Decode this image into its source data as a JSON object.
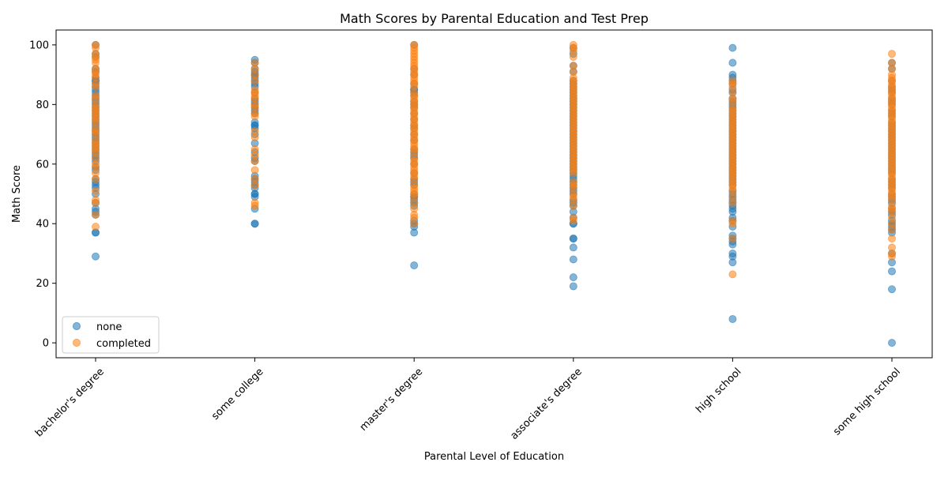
{
  "chart_data": {
    "type": "scatter",
    "title": "Math Scores by Parental Education and Test Prep",
    "xlabel": "Parental Level of Education",
    "ylabel": "Math Score",
    "categories": [
      "bachelor's degree",
      "some college",
      "master's degree",
      "associate's degree",
      "high school",
      "some high school"
    ],
    "yticks": [
      0,
      20,
      40,
      60,
      80,
      100
    ],
    "ylim": [
      -5,
      105
    ],
    "grid": false,
    "legend_position": "lower-left",
    "series": [
      {
        "name": "none",
        "color": "#1f77b4",
        "points": {
          "bachelor's degree": [
            29,
            37,
            37,
            43,
            44,
            45,
            47,
            50,
            52,
            53,
            54,
            55,
            58,
            59,
            61,
            62,
            63,
            64,
            65,
            66,
            67,
            68,
            69,
            70,
            71,
            72,
            73,
            74,
            75,
            76,
            77,
            78,
            79,
            80,
            81,
            82,
            83,
            84,
            85,
            86,
            87,
            88,
            88,
            89,
            91,
            92,
            96,
            97,
            100
          ],
          "some college": [
            40,
            40,
            45,
            49,
            50,
            50,
            52,
            53,
            54,
            55,
            56,
            61,
            62,
            64,
            67,
            70,
            72,
            73,
            73,
            74,
            77,
            78,
            79,
            80,
            81,
            82,
            84,
            86,
            87,
            88,
            89,
            90,
            90,
            91,
            92,
            94,
            95
          ],
          "master's degree": [
            26,
            37,
            39,
            40,
            41,
            46,
            47,
            48,
            49,
            49,
            50,
            53,
            54,
            55,
            57,
            60,
            62,
            63,
            64,
            65,
            68,
            70,
            72,
            73,
            75,
            77,
            79,
            80,
            81,
            83,
            84,
            85,
            85,
            87,
            90,
            92,
            100
          ],
          "associate's degree": [
            19,
            22,
            28,
            32,
            35,
            35,
            40,
            40,
            42,
            44,
            46,
            47,
            48,
            50,
            51,
            52,
            53,
            54,
            55,
            56,
            57,
            58,
            59,
            60,
            61,
            62,
            63,
            64,
            65,
            66,
            67,
            68,
            69,
            70,
            71,
            72,
            73,
            74,
            75,
            76,
            77,
            78,
            79,
            80,
            81,
            82,
            83,
            84,
            85,
            86,
            87,
            88,
            91,
            93,
            97,
            99
          ],
          "high school": [
            8,
            27,
            29,
            30,
            33,
            34,
            35,
            36,
            39,
            41,
            42,
            44,
            45,
            46,
            47,
            48,
            49,
            50,
            51,
            53,
            54,
            55,
            56,
            57,
            58,
            59,
            60,
            61,
            62,
            63,
            64,
            65,
            66,
            67,
            68,
            69,
            70,
            71,
            72,
            73,
            74,
            75,
            76,
            77,
            78,
            79,
            80,
            81,
            82,
            84,
            85,
            87,
            88,
            89,
            90,
            94,
            99
          ],
          "some high school": [
            0,
            18,
            24,
            27,
            30,
            37,
            38,
            39,
            40,
            41,
            43,
            44,
            45,
            47,
            48,
            49,
            50,
            52,
            53,
            54,
            55,
            57,
            58,
            59,
            60,
            61,
            62,
            63,
            64,
            65,
            66,
            67,
            68,
            69,
            70,
            71,
            72,
            73,
            74,
            76,
            77,
            78,
            80,
            81,
            82,
            84,
            85,
            86,
            88,
            92,
            94
          ]
        }
      },
      {
        "name": "completed",
        "color": "#ff7f0e",
        "points": {
          "bachelor's degree": [
            39,
            43,
            47,
            48,
            51,
            55,
            57,
            59,
            60,
            62,
            64,
            65,
            66,
            67,
            68,
            70,
            71,
            72,
            74,
            75,
            76,
            77,
            78,
            79,
            80,
            82,
            83,
            86,
            87,
            89,
            90,
            91,
            92,
            94,
            95,
            96,
            97,
            99,
            100
          ],
          "some college": [
            46,
            47,
            53,
            55,
            58,
            61,
            63,
            65,
            69,
            71,
            76,
            77,
            79,
            80,
            82,
            83,
            84,
            85,
            88,
            90,
            92,
            94
          ],
          "master's degree": [
            40,
            42,
            43,
            45,
            47,
            49,
            50,
            51,
            52,
            53,
            55,
            56,
            57,
            58,
            59,
            60,
            61,
            62,
            64,
            65,
            66,
            67,
            68,
            69,
            70,
            71,
            72,
            73,
            74,
            75,
            76,
            77,
            78,
            79,
            80,
            81,
            82,
            83,
            84,
            86,
            87,
            88,
            89,
            90,
            91,
            92,
            93,
            94,
            95,
            96,
            97,
            98,
            99,
            100
          ],
          "associate's degree": [
            41,
            42,
            46,
            48,
            49,
            50,
            52,
            53,
            54,
            57,
            58,
            59,
            60,
            61,
            62,
            63,
            64,
            65,
            66,
            67,
            68,
            69,
            70,
            71,
            72,
            73,
            74,
            75,
            76,
            77,
            78,
            79,
            80,
            81,
            82,
            83,
            84,
            85,
            86,
            87,
            88,
            89,
            91,
            93,
            96,
            98,
            99,
            100
          ],
          "high school": [
            23,
            35,
            40,
            41,
            47,
            49,
            51,
            52,
            53,
            54,
            55,
            56,
            57,
            58,
            59,
            60,
            61,
            62,
            63,
            64,
            65,
            66,
            67,
            68,
            69,
            70,
            71,
            72,
            73,
            74,
            75,
            76,
            77,
            78,
            79,
            81,
            82,
            84,
            86,
            87,
            88
          ],
          "some high school": [
            29,
            30,
            32,
            35,
            38,
            40,
            42,
            44,
            45,
            46,
            48,
            49,
            50,
            51,
            52,
            53,
            54,
            55,
            56,
            57,
            58,
            59,
            60,
            61,
            62,
            63,
            64,
            65,
            66,
            67,
            68,
            69,
            70,
            71,
            72,
            73,
            74,
            75,
            76,
            77,
            78,
            79,
            80,
            81,
            82,
            83,
            84,
            85,
            86,
            87,
            88,
            89,
            90,
            92,
            94,
            97
          ]
        }
      }
    ]
  }
}
